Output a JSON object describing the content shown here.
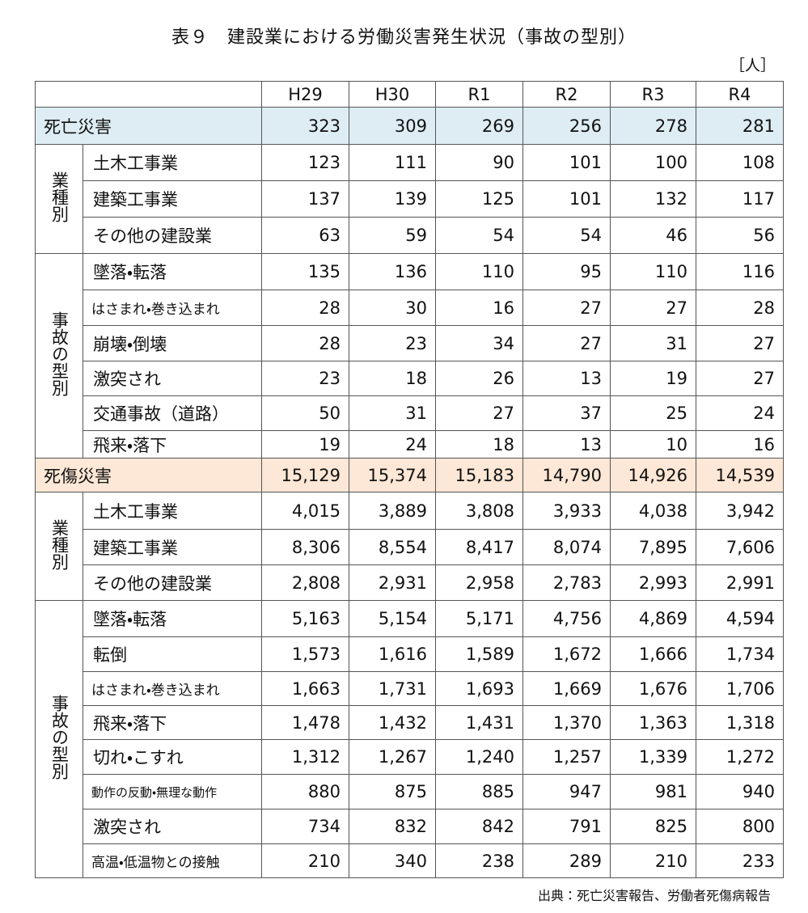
{
  "header": {
    "title": "表９　建設業における労働災害発生状況（事故の型別）",
    "unit": "［人］"
  },
  "table": {
    "columns": [
      "H29",
      "H30",
      "R1",
      "R2",
      "R3",
      "R4"
    ],
    "sections": [
      {
        "label": "死亡災害",
        "values": [
          "323",
          "309",
          "269",
          "256",
          "278",
          "281"
        ],
        "groups": [
          {
            "label": "業種別",
            "rows": [
              {
                "label": "土木工事業",
                "values": [
                  "123",
                  "111",
                  "90",
                  "101",
                  "100",
                  "108"
                ]
              },
              {
                "label": "建築工事業",
                "values": [
                  "137",
                  "139",
                  "125",
                  "101",
                  "132",
                  "117"
                ]
              },
              {
                "label": "その他の建設業",
                "values": [
                  "63",
                  "59",
                  "54",
                  "54",
                  "46",
                  "56"
                ]
              }
            ]
          },
          {
            "label": "事故の型別",
            "rows": [
              {
                "label": "墜落・転落",
                "values": [
                  "135",
                  "136",
                  "110",
                  "95",
                  "110",
                  "116"
                ]
              },
              {
                "label": "はさまれ・巻き込まれ",
                "values": [
                  "28",
                  "30",
                  "16",
                  "27",
                  "27",
                  "28"
                ]
              },
              {
                "label": "崩壊・倒壊",
                "values": [
                  "28",
                  "23",
                  "34",
                  "27",
                  "31",
                  "27"
                ]
              },
              {
                "label": "激突され",
                "values": [
                  "23",
                  "18",
                  "26",
                  "13",
                  "19",
                  "27"
                ]
              },
              {
                "label": "交通事故（道路）",
                "values": [
                  "50",
                  "31",
                  "27",
                  "37",
                  "25",
                  "24"
                ]
              },
              {
                "label": "飛来・落下",
                "values": [
                  "19",
                  "24",
                  "18",
                  "13",
                  "10",
                  "16"
                ]
              }
            ]
          }
        ]
      },
      {
        "label": "死傷災害",
        "values": [
          "15,129",
          "15,374",
          "15,183",
          "14,790",
          "14,926",
          "14,539"
        ],
        "groups": [
          {
            "label": "業種別",
            "rows": [
              {
                "label": "土木工事業",
                "values": [
                  "4,015",
                  "3,889",
                  "3,808",
                  "3,933",
                  "4,038",
                  "3,942"
                ]
              },
              {
                "label": "建築工事業",
                "values": [
                  "8,306",
                  "8,554",
                  "8,417",
                  "8,074",
                  "7,895",
                  "7,606"
                ]
              },
              {
                "label": "その他の建設業",
                "values": [
                  "2,808",
                  "2,931",
                  "2,958",
                  "2,783",
                  "2,993",
                  "2,991"
                ]
              }
            ]
          },
          {
            "label": "事故の型別",
            "rows": [
              {
                "label": "墜落・転落",
                "values": [
                  "5,163",
                  "5,154",
                  "5,171",
                  "4,756",
                  "4,869",
                  "4,594"
                ]
              },
              {
                "label": "転倒",
                "values": [
                  "1,573",
                  "1,616",
                  "1,589",
                  "1,672",
                  "1,666",
                  "1,734"
                ]
              },
              {
                "label": "はさまれ・巻き込まれ",
                "values": [
                  "1,663",
                  "1,731",
                  "1,693",
                  "1,669",
                  "1,676",
                  "1,706"
                ]
              },
              {
                "label": "飛来・落下",
                "values": [
                  "1,478",
                  "1,432",
                  "1,431",
                  "1,370",
                  "1,363",
                  "1,318"
                ]
              },
              {
                "label": "切れ・こすれ",
                "values": [
                  "1,312",
                  "1,267",
                  "1,240",
                  "1,257",
                  "1,339",
                  "1,272"
                ]
              },
              {
                "label": "動作の反動・無理な動作",
                "values": [
                  "880",
                  "875",
                  "885",
                  "947",
                  "981",
                  "940"
                ]
              },
              {
                "label": "激突され",
                "values": [
                  "734",
                  "832",
                  "842",
                  "791",
                  "825",
                  "800"
                ]
              },
              {
                "label": "高温・低温物との接触",
                "values": [
                  "210",
                  "340",
                  "238",
                  "289",
                  "210",
                  "233"
                ]
              }
            ]
          }
        ]
      }
    ]
  },
  "footer": {
    "source": "出典：死亡災害報告、労働者死傷病報告"
  }
}
